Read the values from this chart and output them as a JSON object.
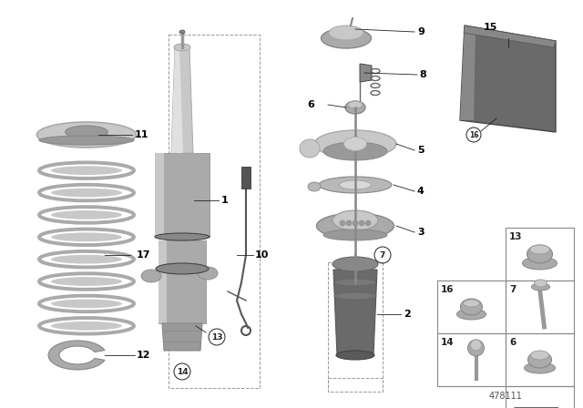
{
  "bg": "#ffffff",
  "diagram_id": "478111",
  "sl": "#c8c8c8",
  "sm": "#aaaaaa",
  "sd": "#888888",
  "smid": "#999999",
  "sdark": "#666666",
  "sxd": "#444444",
  "gbody": "#707070",
  "gdk": "#555555",
  "lc": "#222222",
  "lc2": "#555555",
  "grid_lc": "#888888"
}
